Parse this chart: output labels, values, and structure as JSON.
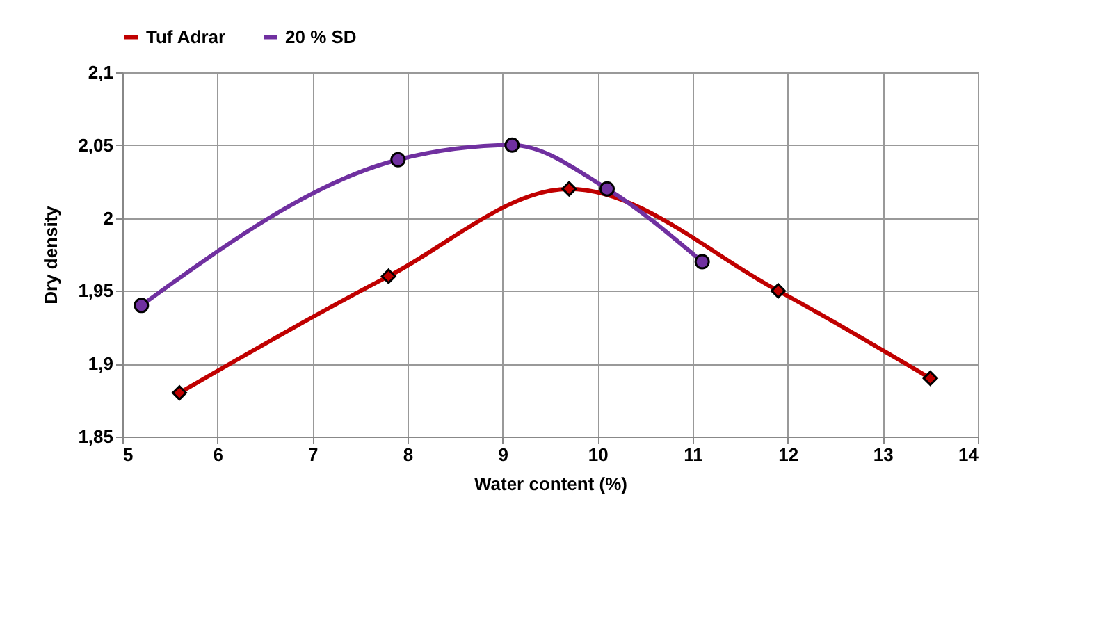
{
  "chart_data": {
    "type": "line",
    "xlabel": "Water content (%)",
    "ylabel": "Dry density",
    "xlim": [
      5,
      14
    ],
    "xticks": [
      5,
      6,
      7,
      8,
      9,
      10,
      11,
      12,
      13,
      14
    ],
    "ylim": [
      1.85,
      2.1
    ],
    "yticks": [
      {
        "value": 1.85,
        "label": "1,85"
      },
      {
        "value": 1.9,
        "label": "1,9"
      },
      {
        "value": 1.95,
        "label": "1,95"
      },
      2,
      {
        "value": 2.05,
        "label": "2,05"
      },
      {
        "value": 2.1,
        "label": "2,1"
      }
    ],
    "grid": true,
    "legend": "top",
    "line_style": "solid",
    "series": [
      {
        "name": "Tuf Adrar",
        "color": "#c00000",
        "marker": "diamond",
        "x": [
          5.6,
          7.8,
          9.7,
          11.9,
          13.5
        ],
        "values": [
          1.88,
          1.96,
          2.02,
          1.95,
          1.89
        ]
      },
      {
        "name": "20 % SD",
        "color": "#7030a0",
        "marker": "circle",
        "x": [
          5.2,
          7.9,
          9.1,
          10.1,
          11.1
        ],
        "values": [
          1.94,
          2.04,
          2.05,
          2.02,
          1.97
        ]
      }
    ]
  }
}
